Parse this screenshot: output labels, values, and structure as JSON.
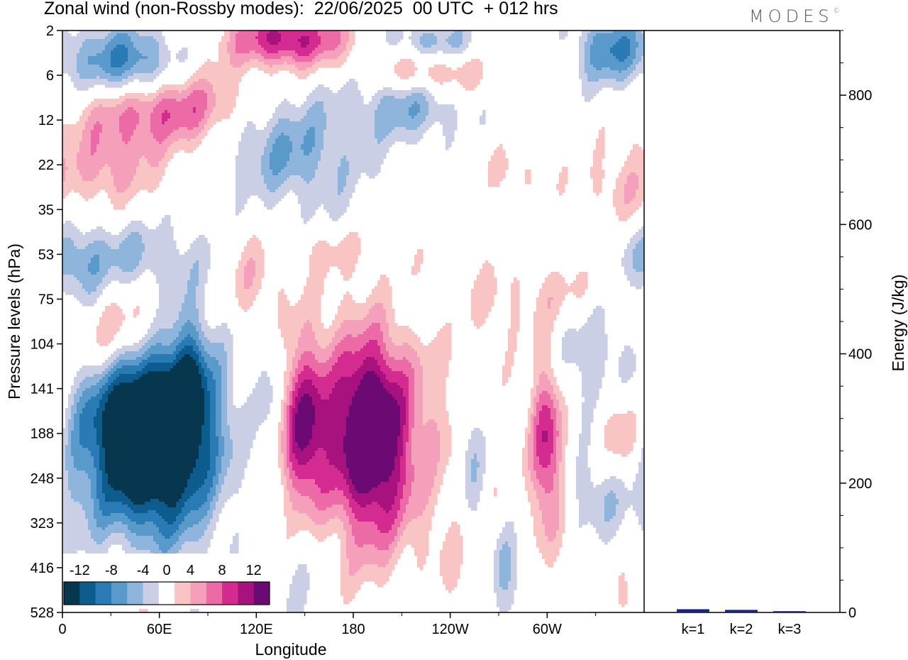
{
  "title": "Zonal wind (non-Rossby modes):  22/06/2025  00 UTC  + 012 hrs",
  "logo": "MODES",
  "logo_mark": "©",
  "chart_data": [
    {
      "type": "heatmap",
      "title": "Zonal wind (non-Rossby modes):  22/06/2025  00 UTC  + 012 hrs",
      "xlabel": "Longitude",
      "ylabel": "Pressure levels (hPa)",
      "x_ticks": [
        "0",
        "60E",
        "120E",
        "180",
        "120W",
        "60W"
      ],
      "x_tick_degrees": [
        0,
        60,
        120,
        180,
        240,
        300
      ],
      "xlim": [
        0,
        360
      ],
      "y_ticks": [
        "2",
        "6",
        "12",
        "22",
        "35",
        "53",
        "75",
        "104",
        "141",
        "188",
        "248",
        "323",
        "416",
        "528"
      ],
      "colorbar": {
        "labels": [
          "-12",
          "-8",
          "-4",
          "0",
          "4",
          "8",
          "12"
        ],
        "levels": [
          -14,
          -12,
          -10,
          -8,
          -6,
          -4,
          -2,
          2,
          4,
          6,
          8,
          10,
          12,
          14
        ],
        "colors": [
          "#06374f",
          "#0c5c8e",
          "#2a7ab5",
          "#5a9acb",
          "#8fb5dc",
          "#cacfe6",
          "#ffffff",
          "#f9c4c4",
          "#f4a0bb",
          "#ec6aa6",
          "#d42b90",
          "#a8127f",
          "#6b0a73"
        ]
      },
      "features": [
        {
          "lon": 62,
          "p_index": 8.8,
          "value": -13,
          "sx": 26,
          "sy": 1.6
        },
        {
          "lon": 45,
          "p_index": 9.0,
          "value": -10,
          "sx": 30,
          "sy": 1.7
        },
        {
          "lon": 40,
          "p_index": 0.8,
          "value": -10,
          "sx": 22,
          "sy": 0.6
        },
        {
          "lon": 78,
          "p_index": 7.6,
          "value": -5,
          "sx": 8,
          "sy": 1.1
        },
        {
          "lon": 128,
          "p_index": 7.9,
          "value": -4,
          "sx": 6,
          "sy": 1.4
        },
        {
          "lon": 130,
          "p_index": 2.6,
          "value": -5,
          "sx": 22,
          "sy": 0.8
        },
        {
          "lon": 165,
          "p_index": 2.8,
          "value": -3,
          "sx": 22,
          "sy": 1.2
        },
        {
          "lon": 30,
          "p_index": 5.0,
          "value": -4,
          "sx": 40,
          "sy": 0.5
        },
        {
          "lon": 12,
          "p_index": 5.6,
          "value": -4,
          "sx": 10,
          "sy": 0.6
        },
        {
          "lon": 215,
          "p_index": 1.6,
          "value": -6,
          "sx": 22,
          "sy": 0.6
        },
        {
          "lon": 228,
          "p_index": 0.3,
          "value": -6,
          "sx": 20,
          "sy": 0.35
        },
        {
          "lon": 340,
          "p_index": 0.4,
          "value": -8,
          "sx": 16,
          "sy": 0.6
        },
        {
          "lon": 253,
          "p_index": 9.5,
          "value": -5,
          "sx": 6,
          "sy": 1.3
        },
        {
          "lon": 275,
          "p_index": 12.2,
          "value": -5,
          "sx": 7,
          "sy": 0.7
        },
        {
          "lon": 335,
          "p_index": 10.3,
          "value": -4,
          "sx": 15,
          "sy": 0.7
        },
        {
          "lon": 330,
          "p_index": 7.3,
          "value": -4,
          "sx": 18,
          "sy": 0.9
        },
        {
          "lon": 230,
          "p_index": 6.2,
          "value": -3,
          "sx": 18,
          "sy": 0.5
        },
        {
          "lon": 225,
          "p_index": 13.0,
          "value": -3,
          "sx": 18,
          "sy": 0.8
        },
        {
          "lon": 150,
          "p_index": 12.2,
          "value": -2.5,
          "sx": 12,
          "sy": 1.6
        },
        {
          "lon": 190,
          "p_index": 8.9,
          "value": 12,
          "sx": 15,
          "sy": 1.3
        },
        {
          "lon": 150,
          "p_index": 9.0,
          "value": 10,
          "sx": 10,
          "sy": 1.3
        },
        {
          "lon": 192,
          "p_index": 8.7,
          "value": 5,
          "sx": 42,
          "sy": 1.9
        },
        {
          "lon": 300,
          "p_index": 9.3,
          "value": 10,
          "sx": 7,
          "sy": 1.4
        },
        {
          "lon": 346,
          "p_index": 9.0,
          "value": 6,
          "sx": 10,
          "sy": 0.9
        },
        {
          "lon": 40,
          "p_index": 6.8,
          "value": 9,
          "sx": 26,
          "sy": 0.8
        },
        {
          "lon": 60,
          "p_index": 1.7,
          "value": 9,
          "sx": 34,
          "sy": 0.6
        },
        {
          "lon": 140,
          "p_index": 0.2,
          "value": 11,
          "sx": 26,
          "sy": 0.45
        },
        {
          "lon": 225,
          "p_index": 0.9,
          "value": 7,
          "sx": 24,
          "sy": 0.4
        },
        {
          "lon": 30,
          "p_index": 3.0,
          "value": 5,
          "sx": 20,
          "sy": 0.6
        },
        {
          "lon": 120,
          "p_index": 5.6,
          "value": 4,
          "sx": 12,
          "sy": 0.7
        },
        {
          "lon": 195,
          "p_index": 10.8,
          "value": 3,
          "sx": 18,
          "sy": 1.6
        },
        {
          "lon": 260,
          "p_index": 6.1,
          "value": 2.5,
          "sx": 26,
          "sy": 0.6
        },
        {
          "lon": 315,
          "p_index": 5.8,
          "value": 2.5,
          "sx": 18,
          "sy": 0.5
        },
        {
          "lon": 165,
          "p_index": 4.9,
          "value": 2.5,
          "sx": 18,
          "sy": 0.35
        },
        {
          "lon": 280,
          "p_index": 3.2,
          "value": 2.5,
          "sx": 14,
          "sy": 0.4
        },
        {
          "lon": 345,
          "p_index": 3.5,
          "value": 3,
          "sx": 18,
          "sy": 0.6
        },
        {
          "lon": 42,
          "p_index": 12.4,
          "value": 3,
          "sx": 12,
          "sy": 1.0
        },
        {
          "lon": 242,
          "p_index": 12.5,
          "value": 3,
          "sx": 14,
          "sy": 0.9
        },
        {
          "lon": 350,
          "p_index": 12.7,
          "value": 3,
          "sx": 6,
          "sy": 0.5
        }
      ]
    },
    {
      "type": "bar",
      "ylabel": "Energy (J/kg)",
      "categories": [
        "k=1",
        "k=2",
        "k=3"
      ],
      "values": [
        5,
        4,
        2
      ],
      "ylim": [
        0,
        900
      ],
      "y_ticks": [
        0,
        200,
        400,
        600,
        800
      ],
      "bar_color": "#1a237e"
    }
  ]
}
